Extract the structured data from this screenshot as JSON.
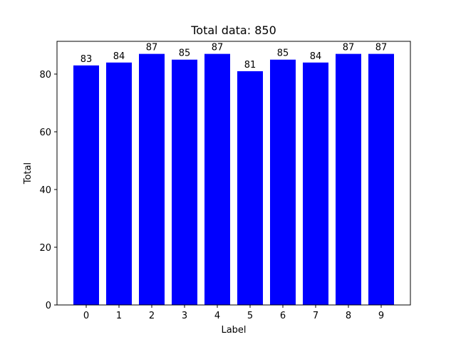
{
  "chart_data": {
    "type": "bar",
    "title": "Total data: 850",
    "xlabel": "Label",
    "ylabel": "Total",
    "categories": [
      "0",
      "1",
      "2",
      "3",
      "4",
      "5",
      "6",
      "7",
      "8",
      "9"
    ],
    "values": [
      83,
      84,
      87,
      85,
      87,
      81,
      85,
      84,
      87,
      87
    ],
    "data_labels": [
      "83",
      "84",
      "87",
      "85",
      "87",
      "81",
      "85",
      "84",
      "87",
      "87"
    ],
    "ylim": [
      0,
      91.35
    ],
    "yticks": [
      0,
      20,
      40,
      60,
      80
    ],
    "ytick_labels": [
      "0",
      "20",
      "40",
      "60",
      "80"
    ],
    "bar_color": "#0000ff",
    "grid": false,
    "legend": "none"
  }
}
